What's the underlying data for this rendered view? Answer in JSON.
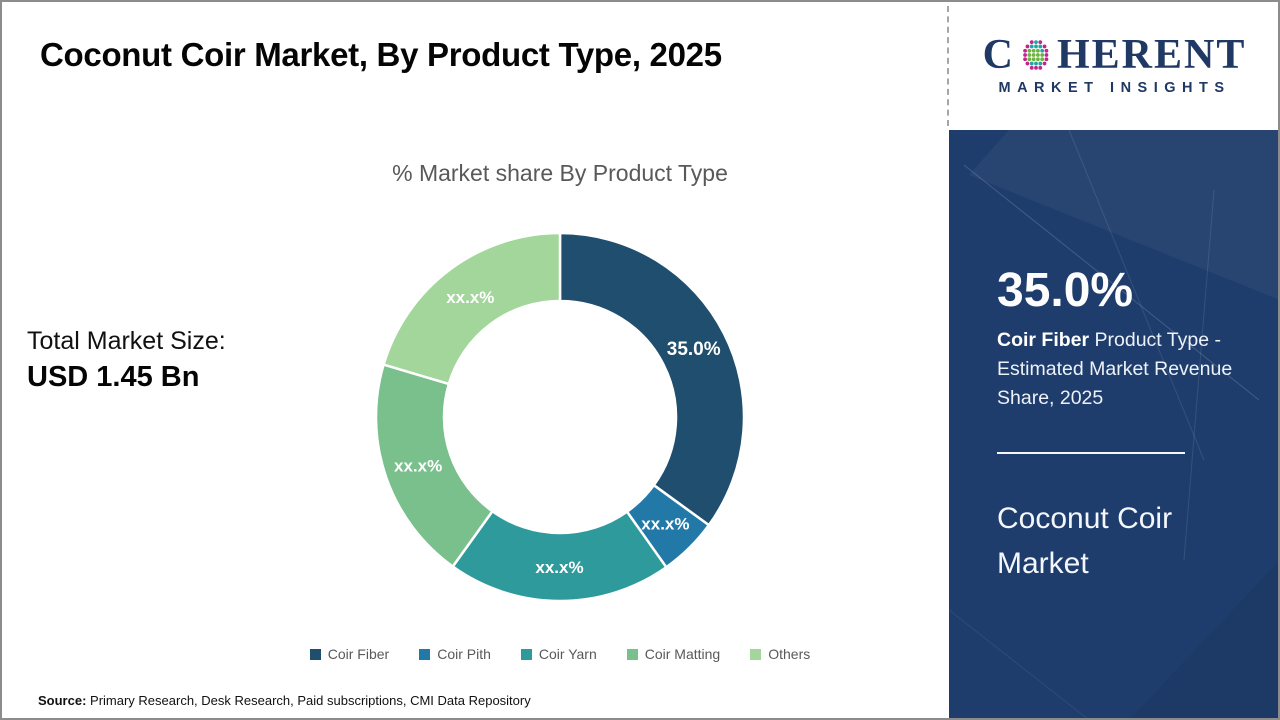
{
  "header": {
    "title": "Coconut Coir Market, By Product Type, 2025"
  },
  "logo": {
    "word_start": "C",
    "word_end": "HERENT",
    "subtitle": "MARKET INSIGHTS",
    "brand_color": "#1F3864",
    "dot_colors": {
      "pink": "#C2268E",
      "teal": "#1FA8A0",
      "green": "#6CB33F"
    }
  },
  "main": {
    "total_label": "Total Market Size:",
    "total_value": "USD 1.45 Bn",
    "source_label": "Source:",
    "source_text": " Primary Research, Desk Research, Paid subscriptions, CMI Data Repository"
  },
  "chart_data": {
    "type": "pie",
    "title": "% Market share By Product Type",
    "donut_hole_ratio": 0.63,
    "start_angle_deg": 0,
    "legend_position": "bottom",
    "grid": false,
    "segments": [
      {
        "label": "Coir Fiber",
        "value_pct": 35.0,
        "display": "35.0%",
        "color": "#1F4E6E"
      },
      {
        "label": "Coir Pith",
        "value_pct": 5.2,
        "display": "xx.x%",
        "color": "#2279A8"
      },
      {
        "label": "Coir Yarn",
        "value_pct": 19.7,
        "display": "xx.x%",
        "color": "#2F9A9C"
      },
      {
        "label": "Coir Matting",
        "value_pct": 19.7,
        "display": "xx.x%",
        "color": "#79C08C"
      },
      {
        "label": "Others",
        "value_pct": 20.4,
        "display": "xx.x%",
        "color": "#A2D69A"
      }
    ]
  },
  "sidebar": {
    "bg_color": "#1F3D6C",
    "stat_value": "35.0%",
    "stat_bold": "Coir Fiber",
    "stat_rest": " Product Type - Estimated Market Revenue Share, 2025",
    "panel_title": "Coconut Coir Market"
  }
}
